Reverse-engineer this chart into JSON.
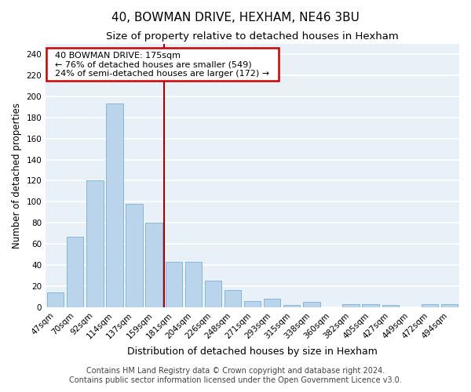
{
  "title1": "40, BOWMAN DRIVE, HEXHAM, NE46 3BU",
  "title2": "Size of property relative to detached houses in Hexham",
  "xlabel": "Distribution of detached houses by size in Hexham",
  "ylabel": "Number of detached properties",
  "categories": [
    "47sqm",
    "70sqm",
    "92sqm",
    "114sqm",
    "137sqm",
    "159sqm",
    "181sqm",
    "204sqm",
    "226sqm",
    "248sqm",
    "271sqm",
    "293sqm",
    "315sqm",
    "338sqm",
    "360sqm",
    "382sqm",
    "405sqm",
    "427sqm",
    "449sqm",
    "472sqm",
    "494sqm"
  ],
  "values": [
    14,
    67,
    120,
    193,
    98,
    80,
    43,
    43,
    25,
    16,
    6,
    8,
    2,
    5,
    0,
    3,
    3,
    2,
    0,
    3,
    3
  ],
  "bar_color": "#bad4ec",
  "bar_edge_color": "#7aafd4",
  "vline_x": 5.5,
  "annotation_text": "  40 BOWMAN DRIVE: 175sqm  \n  ← 76% of detached houses are smaller (549)  \n  24% of semi-detached houses are larger (172) →  ",
  "annotation_box_color": "white",
  "annotation_box_edge_color": "#cc0000",
  "vline_color": "#aa0000",
  "footer1": "Contains HM Land Registry data © Crown copyright and database right 2024.",
  "footer2": "Contains public sector information licensed under the Open Government Licence v3.0.",
  "ylim": [
    0,
    250
  ],
  "yticks": [
    0,
    20,
    40,
    60,
    80,
    100,
    120,
    140,
    160,
    180,
    200,
    220,
    240
  ],
  "bg_color": "#e8f0f8",
  "grid_color": "white",
  "title1_fontsize": 11,
  "title2_fontsize": 9.5,
  "xlabel_fontsize": 9,
  "ylabel_fontsize": 8.5,
  "tick_fontsize": 7.5,
  "annot_fontsize": 8,
  "footer_fontsize": 7
}
